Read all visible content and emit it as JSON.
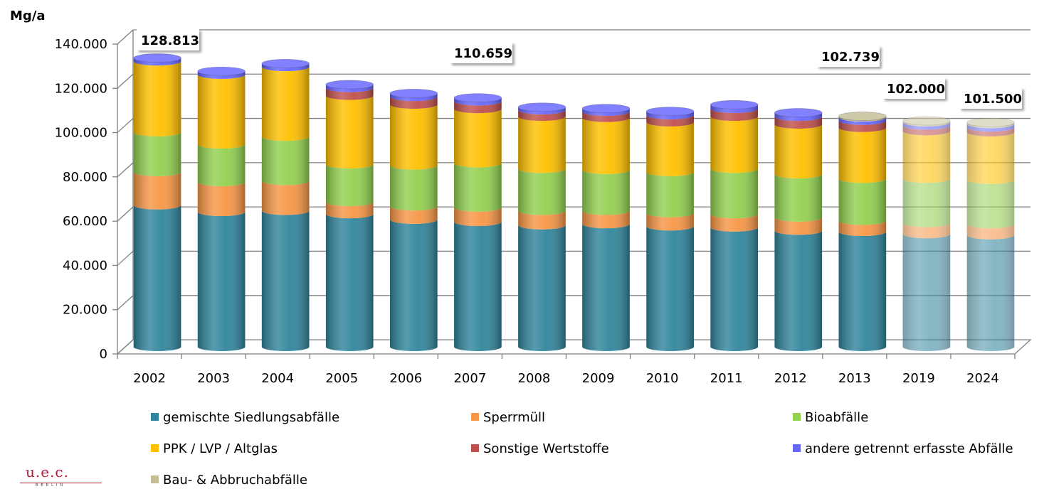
{
  "chart_data": {
    "type": "bar",
    "stacked": true,
    "shape": "cylinder",
    "unit_label": "Mg/a",
    "ylim": [
      0,
      140000
    ],
    "yticks": [
      0,
      20000,
      40000,
      60000,
      80000,
      100000,
      120000,
      140000
    ],
    "ytick_labels": [
      "0",
      "20.000",
      "40.000",
      "60.000",
      "80.000",
      "100.000",
      "120.000",
      "140.000"
    ],
    "grid": true,
    "legend_position": "bottom",
    "categories": [
      "2002",
      "2003",
      "2004",
      "2005",
      "2006",
      "2007",
      "2008",
      "2009",
      "2010",
      "2011",
      "2012",
      "2013",
      "2019",
      "2024"
    ],
    "forecast_categories": [
      "2019",
      "2024"
    ],
    "series": [
      {
        "name": "gemischte Siedlungsabfälle",
        "color": "#31859c",
        "values": [
          64000,
          61000,
          61500,
          60000,
          57500,
          56500,
          55000,
          55500,
          54500,
          54000,
          52500,
          52000,
          51000,
          50500
        ]
      },
      {
        "name": "Sperrmüll",
        "color": "#f79646",
        "values": [
          15000,
          13500,
          13500,
          5500,
          6000,
          6500,
          6500,
          6000,
          6000,
          6000,
          6000,
          5000,
          5000,
          5000
        ]
      },
      {
        "name": "Bioabfälle",
        "color": "#92d050",
        "values": [
          18000,
          17000,
          20000,
          17000,
          18500,
          20000,
          19000,
          18500,
          18500,
          20500,
          19500,
          19000,
          20000,
          20000
        ]
      },
      {
        "name": "PPK / LVP / Altglas",
        "color": "#ffc000",
        "values": [
          32000,
          31500,
          31500,
          31000,
          27500,
          24500,
          23500,
          23500,
          22500,
          23500,
          22500,
          23000,
          21500,
          21500
        ]
      },
      {
        "name": "Sonstige Wertstoffe",
        "color": "#c0504d",
        "values": [
          0,
          0,
          0,
          3500,
          3500,
          3500,
          3000,
          2800,
          3200,
          3600,
          3500,
          3200,
          2500,
          2200
        ]
      },
      {
        "name": "andere getrennt erfasste Abfälle",
        "color": "#6666ff",
        "values": [
          1500,
          1500,
          1500,
          1500,
          1500,
          1500,
          1300,
          1400,
          1700,
          1800,
          1800,
          1500,
          1500,
          1500
        ]
      },
      {
        "name": "Bau- & Abbruchabfälle",
        "color": "#c4bd97",
        "values": [
          0,
          0,
          0,
          0,
          0,
          0,
          0,
          0,
          0,
          0,
          0,
          500,
          600,
          700
        ]
      }
    ],
    "annotations": [
      {
        "text": "128.813",
        "category": "2002"
      },
      {
        "text": "110.659",
        "category": "2007"
      },
      {
        "text": "102.739",
        "category": "2013"
      },
      {
        "text": "102.000",
        "category": "2019"
      },
      {
        "text": "101.500",
        "category": "2024"
      }
    ]
  },
  "logo": {
    "main": "u.e.c.",
    "sub": "BERLIN"
  }
}
